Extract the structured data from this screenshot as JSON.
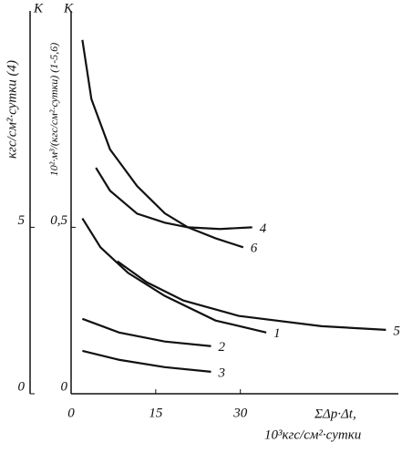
{
  "chart_data": {
    "type": "line",
    "ylabel": "10²·м³/(кгс/см²·сутки) (1-5,6)",
    "y2label": "кгс/см²·сутки (4)",
    "ytitle": "К",
    "y2title": "К",
    "xlabel": "ΣΔp·Δt,",
    "xunit": "10³кгс/см²·сутки",
    "xlim": [
      0,
      58
    ],
    "xticks": [
      0,
      15,
      30
    ],
    "ylim": [
      0,
      1.15
    ],
    "yticks": [
      0,
      {
        "value": 0.5,
        "label": "0,5"
      }
    ],
    "y2lim": [
      0,
      11.5
    ],
    "y2ticks": [
      0,
      5
    ],
    "grid": false,
    "color": "#111111",
    "series": [
      {
        "name": "6",
        "x": [
          2.0,
          3.6,
          6.9,
          11.7,
          16.6,
          20.7,
          25.6,
          30.5
        ],
        "values": [
          1.063,
          0.885,
          0.734,
          0.624,
          0.542,
          0.5,
          0.467,
          0.44
        ]
      },
      {
        "name": "4",
        "axis": "y2",
        "x": [
          4.4,
          6.9,
          11.7,
          16.6,
          20.7,
          26.4,
          32.1
        ],
        "values": [
          6.79,
          6.1,
          5.41,
          5.14,
          5.0,
          4.95,
          5.0
        ]
      },
      {
        "name": "1",
        "x": [
          2.0,
          5.2,
          10.1,
          16.6,
          25.6,
          34.6
        ],
        "values": [
          0.527,
          0.44,
          0.363,
          0.294,
          0.22,
          0.184
        ]
      },
      {
        "name": "5",
        "x": [
          8.2,
          13.4,
          19.9,
          29.7,
          44.4,
          55.8
        ],
        "values": [
          0.398,
          0.335,
          0.28,
          0.234,
          0.203,
          0.192
        ]
      },
      {
        "name": "2",
        "x": [
          2.0,
          8.5,
          16.6,
          24.8
        ],
        "values": [
          0.225,
          0.184,
          0.157,
          0.143
        ]
      },
      {
        "name": "3",
        "x": [
          2.0,
          8.5,
          16.6,
          24.8
        ],
        "values": [
          0.129,
          0.102,
          0.08,
          0.066
        ]
      }
    ]
  }
}
